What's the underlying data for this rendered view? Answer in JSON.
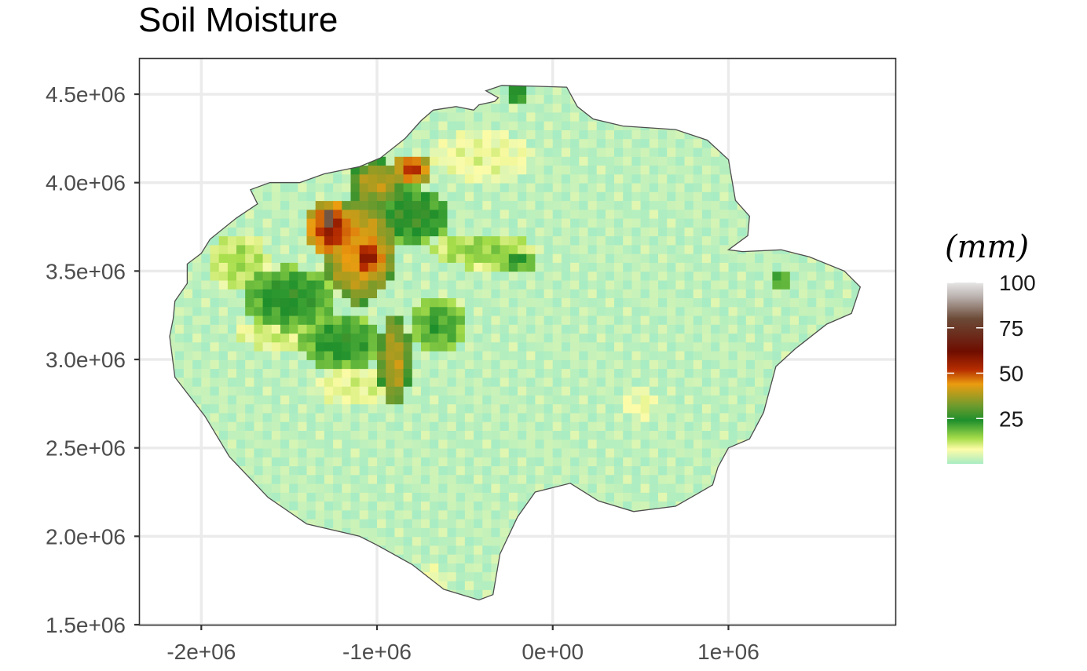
{
  "chart_data": {
    "type": "heatmap",
    "title": "Soil Moisture",
    "xlabel": "",
    "ylabel": "",
    "xlim": [
      -2350000,
      1950000
    ],
    "ylim": [
      1500000,
      4700000
    ],
    "x_ticks": [
      {
        "value": -2000000,
        "label": "-2e+06"
      },
      {
        "value": -1000000,
        "label": "-1e+06"
      },
      {
        "value": 0,
        "label": "0e+00"
      },
      {
        "value": 1000000,
        "label": "1e+06"
      }
    ],
    "y_ticks": [
      {
        "value": 1500000,
        "label": "1.5e+06"
      },
      {
        "value": 2000000,
        "label": "2.0e+06"
      },
      {
        "value": 2500000,
        "label": "2.5e+06"
      },
      {
        "value": 3000000,
        "label": "3.0e+06"
      },
      {
        "value": 3500000,
        "label": "3.5e+06"
      },
      {
        "value": 4000000,
        "label": "4.0e+06"
      },
      {
        "value": 4500000,
        "label": "4.5e+06"
      }
    ],
    "grid": true,
    "legend": {
      "title": "(mm)",
      "placement": "right",
      "range": [
        0,
        100
      ],
      "ticks": [
        {
          "value": 25,
          "label": "25"
        },
        {
          "value": 50,
          "label": "50"
        },
        {
          "value": 75,
          "label": "75"
        },
        {
          "value": 100,
          "label": "100"
        }
      ],
      "colors": [
        {
          "value": 0,
          "color": "#a8ecc3"
        },
        {
          "value": 8,
          "color": "#fdfca8"
        },
        {
          "value": 14,
          "color": "#a6dd4a"
        },
        {
          "value": 24,
          "color": "#1e8f2c"
        },
        {
          "value": 32,
          "color": "#6e9b2e"
        },
        {
          "value": 44,
          "color": "#eb9c10"
        },
        {
          "value": 52,
          "color": "#b52c00"
        },
        {
          "value": 62,
          "color": "#6e0d00"
        },
        {
          "value": 80,
          "color": "#6b4a37"
        },
        {
          "value": 92,
          "color": "#b9b0ad"
        },
        {
          "value": 100,
          "color": "#e6e6e6"
        }
      ]
    },
    "outline": [
      [
        -2180000,
        3130000
      ],
      [
        -2160000,
        3230000
      ],
      [
        -2150000,
        3330000
      ],
      [
        -2080000,
        3430000
      ],
      [
        -2080000,
        3540000
      ],
      [
        -2000000,
        3600000
      ],
      [
        -1950000,
        3680000
      ],
      [
        -1800000,
        3800000
      ],
      [
        -1680000,
        3880000
      ],
      [
        -1720000,
        3960000
      ],
      [
        -1610000,
        4000000
      ],
      [
        -1440000,
        4000000
      ],
      [
        -1300000,
        4050000
      ],
      [
        -1100000,
        4090000
      ],
      [
        -980000,
        4140000
      ],
      [
        -840000,
        4250000
      ],
      [
        -750000,
        4350000
      ],
      [
        -680000,
        4410000
      ],
      [
        -550000,
        4430000
      ],
      [
        -450000,
        4410000
      ],
      [
        -420000,
        4440000
      ],
      [
        -330000,
        4460000
      ],
      [
        -310000,
        4480000
      ],
      [
        -380000,
        4520000
      ],
      [
        -290000,
        4550000
      ],
      [
        -100000,
        4545000
      ],
      [
        80000,
        4540000
      ],
      [
        140000,
        4430000
      ],
      [
        230000,
        4360000
      ],
      [
        400000,
        4320000
      ],
      [
        700000,
        4300000
      ],
      [
        880000,
        4240000
      ],
      [
        1000000,
        4130000
      ],
      [
        1040000,
        3900000
      ],
      [
        1120000,
        3810000
      ],
      [
        1110000,
        3700000
      ],
      [
        1000000,
        3620000
      ],
      [
        1080000,
        3610000
      ],
      [
        1300000,
        3620000
      ],
      [
        1460000,
        3580000
      ],
      [
        1660000,
        3500000
      ],
      [
        1750000,
        3410000
      ],
      [
        1700000,
        3260000
      ],
      [
        1560000,
        3200000
      ],
      [
        1380000,
        3060000
      ],
      [
        1270000,
        2960000
      ],
      [
        1200000,
        2700000
      ],
      [
        1120000,
        2550000
      ],
      [
        1000000,
        2500000
      ],
      [
        940000,
        2390000
      ],
      [
        910000,
        2290000
      ],
      [
        700000,
        2170000
      ],
      [
        460000,
        2140000
      ],
      [
        260000,
        2200000
      ],
      [
        100000,
        2300000
      ],
      [
        -100000,
        2250000
      ],
      [
        -200000,
        2110000
      ],
      [
        -300000,
        1900000
      ],
      [
        -340000,
        1670000
      ],
      [
        -420000,
        1640000
      ],
      [
        -620000,
        1700000
      ],
      [
        -800000,
        1840000
      ],
      [
        -1000000,
        1950000
      ],
      [
        -1100000,
        2000000
      ],
      [
        -1400000,
        2070000
      ],
      [
        -1620000,
        2220000
      ],
      [
        -1840000,
        2450000
      ],
      [
        -1980000,
        2680000
      ],
      [
        -2150000,
        2900000
      ]
    ],
    "features": [
      {
        "x": -1100000,
        "y": 3620000,
        "rx": 210000,
        "ry": 300000,
        "value": 45
      },
      {
        "x": -1260000,
        "y": 3740000,
        "rx": 140000,
        "ry": 160000,
        "value": 56
      },
      {
        "x": -1260000,
        "y": 3800000,
        "rx": 40000,
        "ry": 40000,
        "value": 100
      },
      {
        "x": -1050000,
        "y": 3580000,
        "rx": 100000,
        "ry": 100000,
        "value": 58
      },
      {
        "x": -1000000,
        "y": 4000000,
        "rx": 160000,
        "ry": 130000,
        "value": 40
      },
      {
        "x": -800000,
        "y": 4080000,
        "rx": 110000,
        "ry": 90000,
        "value": 52
      },
      {
        "x": -800000,
        "y": 3820000,
        "rx": 220000,
        "ry": 160000,
        "value": 27
      },
      {
        "x": -900000,
        "y": 3000000,
        "rx": 90000,
        "ry": 280000,
        "value": 40
      },
      {
        "x": -1500000,
        "y": 3350000,
        "rx": 260000,
        "ry": 180000,
        "value": 25
      },
      {
        "x": -1200000,
        "y": 3100000,
        "rx": 240000,
        "ry": 160000,
        "value": 24
      },
      {
        "x": -650000,
        "y": 3200000,
        "rx": 160000,
        "ry": 150000,
        "value": 22
      },
      {
        "x": -1500000,
        "y": 3150000,
        "rx": 300000,
        "ry": 100000,
        "value": 12
      },
      {
        "x": -400000,
        "y": 3620000,
        "rx": 280000,
        "ry": 100000,
        "value": 16
      },
      {
        "x": -200000,
        "y": 3560000,
        "rx": 100000,
        "ry": 60000,
        "value": 24
      },
      {
        "x": -1780000,
        "y": 3550000,
        "rx": 170000,
        "ry": 170000,
        "value": 14
      },
      {
        "x": -1100000,
        "y": 2850000,
        "rx": 260000,
        "ry": 120000,
        "value": 10
      },
      {
        "x": -400000,
        "y": 4150000,
        "rx": 280000,
        "ry": 140000,
        "value": 9
      },
      {
        "x": 500000,
        "y": 2750000,
        "rx": 120000,
        "ry": 90000,
        "value": 8
      },
      {
        "x": -200000,
        "y": 4500000,
        "rx": 80000,
        "ry": 40000,
        "value": 28
      },
      {
        "x": 1280000,
        "y": 3450000,
        "rx": 60000,
        "ry": 50000,
        "value": 24
      },
      {
        "x": -700000,
        "y": 1750000,
        "rx": 100000,
        "ry": 80000,
        "value": 8
      }
    ]
  }
}
